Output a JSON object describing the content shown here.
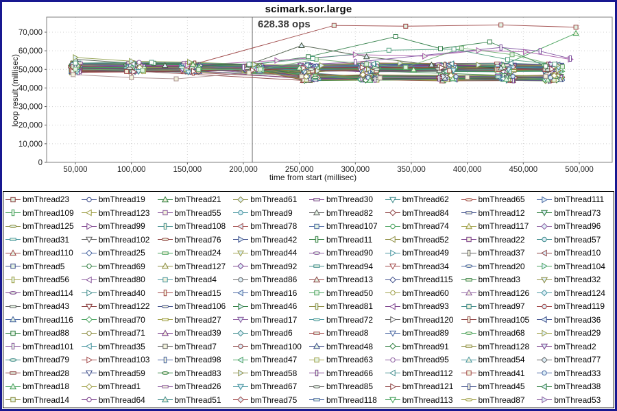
{
  "window": {
    "background": "#ffffff",
    "border_color": "#181890"
  },
  "chart": {
    "title": "scimark.sor.large",
    "annotation": {
      "text": "628.38 ops"
    },
    "x_axis": {
      "label": "time from start (millisec)"
    },
    "y_axis": {
      "label": "loop result (millisec)"
    }
  },
  "chart_data": {
    "type": "line",
    "title": "scimark.sor.large",
    "xlabel": "time from start (millisec)",
    "ylabel": "loop result (millisec)",
    "xlim": [
      24000,
      521000
    ],
    "ylim": [
      0,
      78000
    ],
    "x_ticks": [
      50000,
      100000,
      150000,
      200000,
      250000,
      300000,
      350000,
      400000,
      450000,
      500000
    ],
    "x_tick_labels": [
      "50,000",
      "100,000",
      "150,000",
      "200,000",
      "250,000",
      "300,000",
      "350,000",
      "400,000",
      "450,000",
      "500,000"
    ],
    "y_ticks": [
      0,
      10000,
      20000,
      30000,
      40000,
      50000,
      60000,
      70000
    ],
    "y_tick_labels": [
      "0",
      "10,000",
      "20,000",
      "30,000",
      "40,000",
      "50,000",
      "60,000",
      "70,000"
    ],
    "grid": true,
    "legend_position": "bottom",
    "annotation": {
      "text": "628.38 ops",
      "x": 208000,
      "marker_line": true
    },
    "series_count": 128,
    "notable_series": [
      {
        "desc": "top outlier plateau ~74k",
        "color": "#9a4040",
        "shape": "square",
        "points": [
          [
            48000,
            51500
          ],
          [
            150000,
            51800
          ],
          [
            281000,
            73600
          ],
          [
            345000,
            73200
          ],
          [
            430000,
            73900
          ],
          [
            497000,
            72700
          ]
        ]
      },
      {
        "desc": "green spike to ~68k at 335k",
        "color": "#2f7d46",
        "shape": "square",
        "points": [
          [
            50000,
            52800
          ],
          [
            120000,
            53300
          ],
          [
            208000,
            52400
          ],
          [
            258000,
            56800
          ],
          [
            336000,
            67600
          ],
          [
            376000,
            61200
          ],
          [
            420000,
            64800
          ],
          [
            470000,
            51800
          ]
        ]
      },
      {
        "desc": "green rise to ~69k at end",
        "color": "#3f9e54",
        "shape": "triangle-up",
        "points": [
          [
            52000,
            52300
          ],
          [
            155000,
            52600
          ],
          [
            250000,
            50800
          ],
          [
            352000,
            49800
          ],
          [
            432000,
            52300
          ],
          [
            497000,
            69400
          ]
        ]
      },
      {
        "desc": "dark series spike ~63k at 252k",
        "color": "#44543f",
        "shape": "triangle-up",
        "points": [
          [
            50000,
            55400
          ],
          [
            130000,
            52100
          ],
          [
            205000,
            52600
          ],
          [
            252000,
            62800
          ],
          [
            310000,
            56800
          ],
          [
            368000,
            52400
          ],
          [
            430000,
            50800
          ]
        ]
      },
      {
        "desc": "magenta band 55-60k right side",
        "color": "#a85aa8",
        "shape": "triangle-right",
        "points": [
          [
            50000,
            52400
          ],
          [
            150000,
            52100
          ],
          [
            230000,
            54800
          ],
          [
            300000,
            57900
          ],
          [
            362000,
            57100
          ],
          [
            410000,
            60200
          ],
          [
            452000,
            59400
          ],
          [
            492000,
            55400
          ]
        ]
      },
      {
        "desc": "violet peak ~62k at 430k",
        "color": "#7d4f9e",
        "shape": "rect-v",
        "points": [
          [
            50000,
            51600
          ],
          [
            200000,
            51100
          ],
          [
            300000,
            53900
          ],
          [
            430000,
            61800
          ],
          [
            465000,
            59800
          ],
          [
            492000,
            55800
          ]
        ]
      },
      {
        "desc": "pale low series dips ~45k early",
        "color": "#a88d8d",
        "shape": "square",
        "points": [
          [
            48000,
            47200
          ],
          [
            100000,
            45600
          ],
          [
            140000,
            44900
          ],
          [
            205000,
            48200
          ],
          [
            252000,
            46200
          ],
          [
            322000,
            45400
          ],
          [
            400000,
            45800
          ],
          [
            470000,
            46300
          ]
        ]
      },
      {
        "desc": "olive high-left ~56k start",
        "color": "#8f9e4a",
        "shape": "triangle-right",
        "points": [
          [
            50000,
            56400
          ],
          [
            100000,
            54400
          ],
          [
            152000,
            53900
          ],
          [
            210000,
            52600
          ],
          [
            270000,
            52100
          ],
          [
            340000,
            53400
          ],
          [
            410000,
            52400
          ],
          [
            480000,
            52100
          ]
        ]
      },
      {
        "desc": "light green wobble ~61k at 395k",
        "color": "#6fae6f",
        "shape": "square",
        "points": [
          [
            50000,
            50100
          ],
          [
            110000,
            49600
          ],
          [
            160000,
            49900
          ],
          [
            215000,
            50100
          ],
          [
            265000,
            55400
          ],
          [
            310000,
            52900
          ],
          [
            345000,
            51100
          ],
          [
            395000,
            61400
          ],
          [
            440000,
            57900
          ],
          [
            485000,
            51400
          ]
        ]
      },
      {
        "desc": "sea-green hump ~60k 330-390k",
        "color": "#4f9e7d",
        "shape": "square",
        "points": [
          [
            50000,
            53400
          ],
          [
            118000,
            53800
          ],
          [
            205000,
            52800
          ],
          [
            262000,
            55800
          ],
          [
            330000,
            60300
          ],
          [
            388000,
            60900
          ],
          [
            436000,
            55300
          ],
          [
            478000,
            52800
          ]
        ]
      }
    ],
    "background_series": {
      "count": 118,
      "seed": 1337,
      "x_stations": [
        50000,
        103000,
        153000,
        209000,
        259000,
        312000,
        382000,
        434000,
        477000
      ],
      "x_jitter": 16000,
      "pre_band": [
        48800,
        53200
      ],
      "waist_band": [
        49300,
        51900
      ],
      "upper_band": [
        49300,
        52600
      ],
      "lower_band": [
        44300,
        46600
      ],
      "lower_fraction": 0.52,
      "converge_x": 209000
    }
  },
  "legend": {
    "items": [
      "bmThread23",
      "bmThread19",
      "bmThread21",
      "bmThread61",
      "bmThread30",
      "bmThread62",
      "bmThread65",
      "bmThread111",
      "bmThread109",
      "bmThread123",
      "bmThread55",
      "bmThread9",
      "bmThread82",
      "bmThread84",
      "bmThread12",
      "bmThread73",
      "bmThread125",
      "bmThread99",
      "bmThread108",
      "bmThread78",
      "bmThread107",
      "bmThread74",
      "bmThread117",
      "bmThread96",
      "bmThread31",
      "bmThread102",
      "bmThread76",
      "bmThread42",
      "bmThread11",
      "bmThread52",
      "bmThread22",
      "bmThread57",
      "bmThread110",
      "bmThread25",
      "bmThread24",
      "bmThread44",
      "bmThread90",
      "bmThread49",
      "bmThread37",
      "bmThread10",
      "bmThread5",
      "bmThread69",
      "bmThread127",
      "bmThread92",
      "bmThread94",
      "bmThread34",
      "bmThread20",
      "bmThread104",
      "bmThread56",
      "bmThread80",
      "bmThread4",
      "bmThread86",
      "bmThread13",
      "bmThread115",
      "bmThread3",
      "bmThread32",
      "bmThread114",
      "bmThread40",
      "bmThread15",
      "bmThread16",
      "bmThread50",
      "bmThread60",
      "bmThread126",
      "bmThread124",
      "bmThread43",
      "bmThread122",
      "bmThread106",
      "bmThread46",
      "bmThread81",
      "bmThread93",
      "bmThread97",
      "bmThread119",
      "bmThread116",
      "bmThread70",
      "bmThread27",
      "bmThread17",
      "bmThread72",
      "bmThread120",
      "bmThread105",
      "bmThread36",
      "bmThread88",
      "bmThread71",
      "bmThread39",
      "bmThread6",
      "bmThread8",
      "bmThread89",
      "bmThread68",
      "bmThread29",
      "bmThread101",
      "bmThread35",
      "bmThread7",
      "bmThread100",
      "bmThread48",
      "bmThread91",
      "bmThread128",
      "bmThread2",
      "bmThread79",
      "bmThread103",
      "bmThread98",
      "bmThread47",
      "bmThread63",
      "bmThread95",
      "bmThread54",
      "bmThread77",
      "bmThread28",
      "bmThread59",
      "bmThread83",
      "bmThread58",
      "bmThread66",
      "bmThread112",
      "bmThread41",
      "bmThread33",
      "bmThread18",
      "bmThread1",
      "bmThread26",
      "bmThread67",
      "bmThread85",
      "bmThread121",
      "bmThread45",
      "bmThread38",
      "bmThread14",
      "bmThread64",
      "bmThread51",
      "bmThread75",
      "bmThread118",
      "bmThread113",
      "bmThread87",
      "bmThread53"
    ]
  },
  "palette": {
    "colors": [
      "#8b3e3e",
      "#3e4e8b",
      "#2e7d3e",
      "#8b8b3e",
      "#7a3e8b",
      "#3e8b8b",
      "#a04545",
      "#4563a0",
      "#45a05a",
      "#9e9e45",
      "#8b5a9e",
      "#45949e",
      "#606060"
    ],
    "shapes": [
      "square",
      "circle",
      "triangle-up",
      "diamond",
      "rect-h",
      "triangle-down",
      "ellipse",
      "triangle-right",
      "rect-v",
      "triangle-left"
    ],
    "marker_fills": [
      "#ffffff",
      "#e3f2e3",
      "#ddeef7",
      "#f2f2dd"
    ],
    "grid_color": "#cfcfcf",
    "plot_border_color": "#7f7f7f",
    "marker_line_color": "#6e6e6e"
  }
}
